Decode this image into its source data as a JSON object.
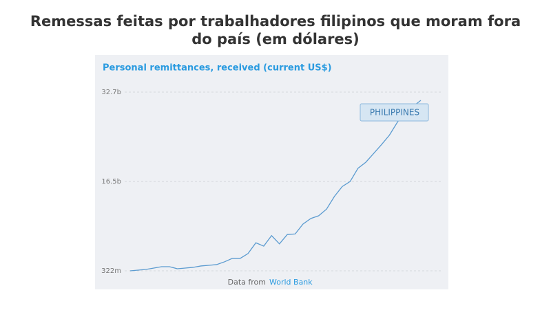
{
  "chart_data": {
    "type": "line",
    "title_lines": [
      "Remessas feitas por trabalhadores filipinos que moram fora",
      "do país (em dólares)"
    ],
    "subtitle": "Personal remittances, received (current US$)",
    "series": [
      {
        "name": "PHILIPPINES",
        "color": "#5b9bd0",
        "values": [
          0.32,
          0.45,
          0.57,
          0.82,
          1.07,
          1.07,
          0.7,
          0.82,
          0.95,
          1.2,
          1.32,
          1.45,
          1.95,
          2.57,
          2.57,
          3.45,
          5.4,
          4.8,
          6.7,
          5.2,
          6.9,
          7.0,
          8.8,
          9.8,
          10.3,
          11.5,
          13.8,
          15.6,
          16.5,
          18.9,
          20.0,
          21.6,
          23.2,
          24.9,
          27.2,
          29.2,
          30.1,
          31.2
        ]
      }
    ],
    "ylim": [
      0.322,
      32.7
    ],
    "yticks": [
      {
        "value": 0.322,
        "label": "322m"
      },
      {
        "value": 16.5,
        "label": "16.5b"
      },
      {
        "value": 32.7,
        "label": "32.7b"
      }
    ],
    "grid": true,
    "source": {
      "prefix": "Data from",
      "name": "World Bank"
    }
  }
}
